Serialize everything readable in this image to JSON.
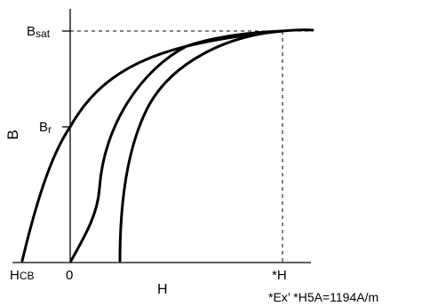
{
  "diagram": {
    "axis_label_y": "B",
    "axis_label_x": "H",
    "label_bsat_main": "B",
    "label_bsat_sub": "sat",
    "label_br_main": "B",
    "label_br_sub": "r",
    "label_hcb_main": "H",
    "label_hcb_sub": "CB",
    "label_origin": "0",
    "label_h_star": "*H",
    "note": "*Ex’ *H5A=1194A/m"
  }
}
